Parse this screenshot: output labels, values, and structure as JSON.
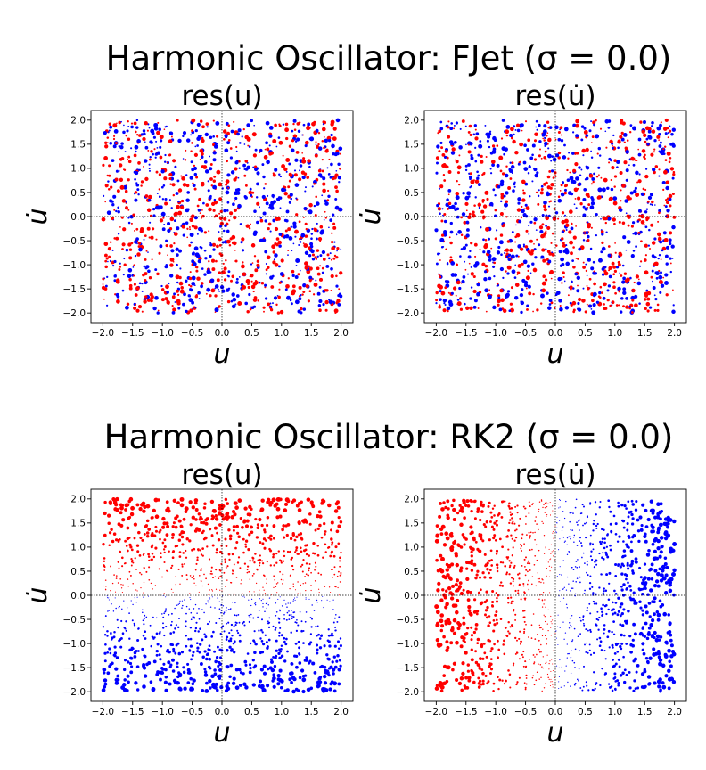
{
  "figure": {
    "suptitles": [
      "Harmonic Oscillator: FJet (σ = 0.0)",
      "Harmonic Oscillator: RK2 (σ = 0.0)"
    ]
  },
  "colors": {
    "positive": "#ff0000",
    "negative": "#0000ff",
    "axis": "#000000",
    "guide": "#000000"
  },
  "chart_data": [
    {
      "type": "scatter",
      "id": "fjet-res-u",
      "row": 0,
      "col": 0,
      "title": "res(u)",
      "xlabel": "u",
      "ylabel": "u̇",
      "xlim": [
        -2.2,
        2.2
      ],
      "ylim": [
        -2.2,
        2.2
      ],
      "xticks": [
        -2.0,
        -1.5,
        -1.0,
        -0.5,
        0.0,
        0.5,
        1.0,
        1.5,
        2.0
      ],
      "yticks": [
        -2.0,
        -1.5,
        -1.0,
        -0.5,
        0.0,
        0.5,
        1.0,
        1.5,
        2.0
      ],
      "xtick_labels": [
        "−2.0",
        "−1.5",
        "−1.0",
        "−0.5",
        "0.0",
        "0.5",
        "1.0",
        "1.5",
        "2.0"
      ],
      "ytick_labels": [
        "−2.0",
        "−1.5",
        "−1.0",
        "−0.5",
        "0.0",
        "0.5",
        "1.0",
        "1.5",
        "2.0"
      ],
      "pattern": "noise",
      "seed": 11,
      "n_points": 1300,
      "encoding": "color = sign of residual (red > 0, blue < 0); marker size ∝ |residual|"
    },
    {
      "type": "scatter",
      "id": "fjet-res-udot",
      "row": 0,
      "col": 1,
      "title": "res(u̇)",
      "xlabel": "u",
      "ylabel": "u̇",
      "xlim": [
        -2.2,
        2.2
      ],
      "ylim": [
        -2.2,
        2.2
      ],
      "xticks": [
        -2.0,
        -1.5,
        -1.0,
        -0.5,
        0.0,
        0.5,
        1.0,
        1.5,
        2.0
      ],
      "yticks": [
        -2.0,
        -1.5,
        -1.0,
        -0.5,
        0.0,
        0.5,
        1.0,
        1.5,
        2.0
      ],
      "xtick_labels": [
        "−2.0",
        "−1.5",
        "−1.0",
        "−0.5",
        "0.0",
        "0.5",
        "1.0",
        "1.5",
        "2.0"
      ],
      "ytick_labels": [
        "−2.0",
        "−1.5",
        "−1.0",
        "−0.5",
        "0.0",
        "0.5",
        "1.0",
        "1.5",
        "2.0"
      ],
      "pattern": "noise",
      "seed": 23,
      "n_points": 1300,
      "encoding": "color = sign of residual (red > 0, blue < 0); marker size ∝ |residual|"
    },
    {
      "type": "scatter",
      "id": "rk2-res-u",
      "row": 1,
      "col": 0,
      "title": "res(u)",
      "xlabel": "u",
      "ylabel": "u̇",
      "xlim": [
        -2.2,
        2.2
      ],
      "ylim": [
        -2.2,
        2.2
      ],
      "xticks": [
        -2.0,
        -1.5,
        -1.0,
        -0.5,
        0.0,
        0.5,
        1.0,
        1.5,
        2.0
      ],
      "yticks": [
        -2.0,
        -1.5,
        -1.0,
        -0.5,
        0.0,
        0.5,
        1.0,
        1.5,
        2.0
      ],
      "xtick_labels": [
        "−2.0",
        "−1.5",
        "−1.0",
        "−0.5",
        "0.0",
        "0.5",
        "1.0",
        "1.5",
        "2.0"
      ],
      "ytick_labels": [
        "−2.0",
        "−1.5",
        "−1.0",
        "−0.5",
        "0.0",
        "0.5",
        "1.0",
        "1.5",
        "2.0"
      ],
      "pattern": "sign_of_udot",
      "seed": 37,
      "n_points": 1400,
      "encoding": "color = sign of residual (red for u̇ > 0, blue for u̇ < 0); marker size ∝ |u̇|"
    },
    {
      "type": "scatter",
      "id": "rk2-res-udot",
      "row": 1,
      "col": 1,
      "title": "res(u̇)",
      "xlabel": "u",
      "ylabel": "u̇",
      "xlim": [
        -2.2,
        2.2
      ],
      "ylim": [
        -2.2,
        2.2
      ],
      "xticks": [
        -2.0,
        -1.5,
        -1.0,
        -0.5,
        0.0,
        0.5,
        1.0,
        1.5,
        2.0
      ],
      "yticks": [
        -2.0,
        -1.5,
        -1.0,
        -0.5,
        0.0,
        0.5,
        1.0,
        1.5,
        2.0
      ],
      "xtick_labels": [
        "−2.0",
        "−1.5",
        "−1.0",
        "−0.5",
        "0.0",
        "0.5",
        "1.0",
        "1.5",
        "2.0"
      ],
      "ytick_labels": [
        "−2.0",
        "−1.5",
        "−1.0",
        "−0.5",
        "0.0",
        "0.5",
        "1.0",
        "1.5",
        "2.0"
      ],
      "pattern": "sign_of_neg_u",
      "seed": 53,
      "n_points": 1400,
      "encoding": "color = sign of residual (red for u < 0, blue for u > 0); marker size ∝ |u|"
    }
  ]
}
